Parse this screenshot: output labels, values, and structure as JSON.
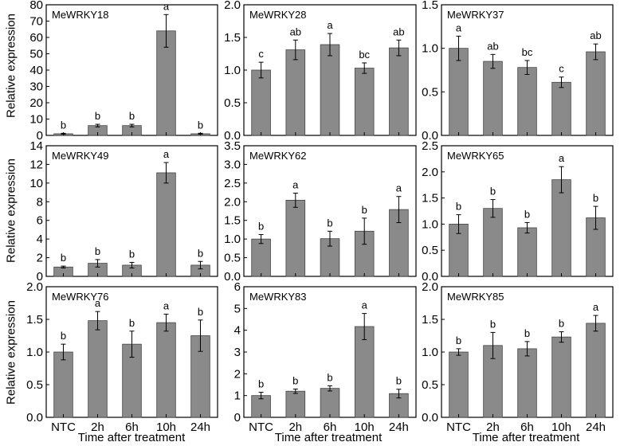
{
  "figure": {
    "y_axis_label": "Relative expression",
    "x_axis_label": "Time after treatment"
  },
  "chart_data": [
    {
      "type": "bar",
      "title": "MeWRKY18",
      "categories": [
        "NTC",
        "2h",
        "6h",
        "10h",
        "24h"
      ],
      "values": [
        1,
        6,
        6,
        64,
        1
      ],
      "errors": [
        0.3,
        0.8,
        0.8,
        10,
        0.3
      ],
      "letters": [
        "b",
        "b",
        "b",
        "a",
        "b"
      ],
      "ylim": [
        0,
        80
      ],
      "yticks": [
        "0",
        "10",
        "20",
        "30",
        "40",
        "50",
        "60",
        "70",
        "80"
      ],
      "xlabel": "",
      "ylabel": "Relative expression"
    },
    {
      "type": "bar",
      "title": "MeWRKY28",
      "categories": [
        "NTC",
        "2h",
        "6h",
        "10h",
        "24h"
      ],
      "values": [
        1.0,
        1.31,
        1.39,
        1.03,
        1.34
      ],
      "errors": [
        0.12,
        0.15,
        0.17,
        0.08,
        0.12
      ],
      "letters": [
        "c",
        "ab",
        "a",
        "bc",
        "ab"
      ],
      "ylim": [
        0,
        2.0
      ],
      "yticks": [
        "0.0",
        "0.5",
        "1.0",
        "1.5",
        "2.0"
      ],
      "xlabel": "",
      "ylabel": ""
    },
    {
      "type": "bar",
      "title": "MeWRKY37",
      "categories": [
        "NTC",
        "2h",
        "6h",
        "10h",
        "24h"
      ],
      "values": [
        1.0,
        0.85,
        0.78,
        0.61,
        0.96
      ],
      "errors": [
        0.14,
        0.08,
        0.08,
        0.06,
        0.09
      ],
      "letters": [
        "a",
        "ab",
        "bc",
        "c",
        "ab"
      ],
      "ylim": [
        0,
        1.5
      ],
      "yticks": [
        "0.0",
        "0.5",
        "1.0",
        "1.5"
      ],
      "xlabel": "",
      "ylabel": ""
    },
    {
      "type": "bar",
      "title": "MeWRKY49",
      "categories": [
        "NTC",
        "2h",
        "6h",
        "10h",
        "24h"
      ],
      "values": [
        1.0,
        1.4,
        1.2,
        11.1,
        1.2
      ],
      "errors": [
        0.1,
        0.4,
        0.3,
        1.1,
        0.4
      ],
      "letters": [
        "b",
        "b",
        "b",
        "a",
        "b"
      ],
      "ylim": [
        0,
        14
      ],
      "yticks": [
        "0",
        "2",
        "4",
        "6",
        "8",
        "10",
        "12",
        "14"
      ],
      "xlabel": "",
      "ylabel": "Relative expression"
    },
    {
      "type": "bar",
      "title": "MeWRKY62",
      "categories": [
        "NTC",
        "2h",
        "6h",
        "10h",
        "24h"
      ],
      "values": [
        1.0,
        2.04,
        1.01,
        1.21,
        1.79
      ],
      "errors": [
        0.12,
        0.19,
        0.2,
        0.35,
        0.35
      ],
      "letters": [
        "b",
        "a",
        "b",
        "b",
        "a"
      ],
      "ylim": [
        0,
        3.5
      ],
      "yticks": [
        "0.0",
        "0.5",
        "1.0",
        "1.5",
        "2.0",
        "2.5",
        "3.0",
        "3.5"
      ],
      "xlabel": "",
      "ylabel": ""
    },
    {
      "type": "bar",
      "title": "MeWRKY65",
      "categories": [
        "NTC",
        "2h",
        "6h",
        "10h",
        "24h"
      ],
      "values": [
        1.0,
        1.3,
        0.93,
        1.85,
        1.12
      ],
      "errors": [
        0.18,
        0.17,
        0.1,
        0.25,
        0.22
      ],
      "letters": [
        "b",
        "b",
        "b",
        "a",
        "b"
      ],
      "ylim": [
        0,
        2.5
      ],
      "yticks": [
        "0.0",
        "0.5",
        "1.0",
        "1.5",
        "2.0",
        "2.5"
      ],
      "xlabel": "",
      "ylabel": ""
    },
    {
      "type": "bar",
      "title": "MeWRKY76",
      "categories": [
        "NTC",
        "2h",
        "6h",
        "10h",
        "24h"
      ],
      "values": [
        1.0,
        1.48,
        1.12,
        1.45,
        1.25
      ],
      "errors": [
        0.12,
        0.14,
        0.2,
        0.13,
        0.24
      ],
      "letters": [
        "b",
        "a",
        "b",
        "a",
        "b"
      ],
      "ylim": [
        0,
        2.0
      ],
      "yticks": [
        "0.0",
        "0.5",
        "1.0",
        "1.5",
        "2.0"
      ],
      "xlabel": "Time after treatment",
      "ylabel": "Relative expression"
    },
    {
      "type": "bar",
      "title": "MeWRKY83",
      "categories": [
        "NTC",
        "2h",
        "6h",
        "10h",
        "24h"
      ],
      "values": [
        1.0,
        1.2,
        1.33,
        4.17,
        1.09
      ],
      "errors": [
        0.15,
        0.1,
        0.12,
        0.6,
        0.2
      ],
      "letters": [
        "b",
        "b",
        "b",
        "a",
        "b"
      ],
      "ylim": [
        0,
        6
      ],
      "yticks": [
        "0",
        "1",
        "2",
        "3",
        "4",
        "5",
        "6"
      ],
      "xlabel": "Time after treatment",
      "ylabel": ""
    },
    {
      "type": "bar",
      "title": "MeWRKY85",
      "categories": [
        "NTC",
        "2h",
        "6h",
        "10h",
        "24h"
      ],
      "values": [
        1.0,
        1.1,
        1.05,
        1.23,
        1.44
      ],
      "errors": [
        0.05,
        0.2,
        0.11,
        0.08,
        0.12
      ],
      "letters": [
        "b",
        "b",
        "b",
        "b",
        "a"
      ],
      "ylim": [
        0,
        2.0
      ],
      "yticks": [
        "0.0",
        "0.5",
        "1.0",
        "1.5",
        "2.0"
      ],
      "xlabel": "Time after treatment",
      "ylabel": ""
    }
  ]
}
